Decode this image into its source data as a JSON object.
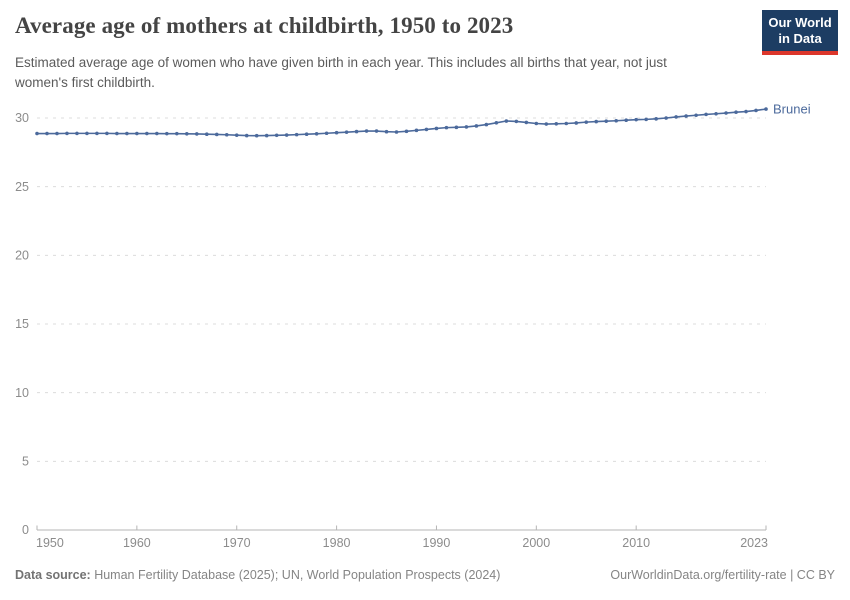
{
  "header": {
    "title": "Average age of mothers at childbirth, 1950 to 2023",
    "subtitle_line1": "Estimated average age of women who have given birth in each year. This includes all births that year, not just",
    "subtitle_line2": "women's first childbirth.",
    "logo": {
      "line1": "Our World",
      "line2": "in Data"
    }
  },
  "chart_data": {
    "type": "line",
    "title": "Average age of mothers at childbirth, 1950 to 2023",
    "xlabel": "",
    "ylabel": "",
    "xlim": [
      1950,
      2023
    ],
    "ylim": [
      0,
      30
    ],
    "x_ticks": [
      1950,
      1960,
      1970,
      1980,
      1990,
      2000,
      2010,
      2023
    ],
    "y_ticks": [
      0,
      5,
      10,
      15,
      20,
      25,
      30
    ],
    "grid": "horizontal-dashed",
    "legend_position": "end-of-line-label",
    "series": [
      {
        "name": "Brunei",
        "color": "#4c6a9c",
        "x": [
          1950,
          1951,
          1952,
          1953,
          1954,
          1955,
          1956,
          1957,
          1958,
          1959,
          1960,
          1961,
          1962,
          1963,
          1964,
          1965,
          1966,
          1967,
          1968,
          1969,
          1970,
          1971,
          1972,
          1973,
          1974,
          1975,
          1976,
          1977,
          1978,
          1979,
          1980,
          1981,
          1982,
          1983,
          1984,
          1985,
          1986,
          1987,
          1988,
          1989,
          1990,
          1991,
          1992,
          1993,
          1994,
          1995,
          1996,
          1997,
          1998,
          1999,
          2000,
          2001,
          2002,
          2003,
          2004,
          2005,
          2006,
          2007,
          2008,
          2009,
          2010,
          2011,
          2012,
          2013,
          2014,
          2015,
          2016,
          2017,
          2018,
          2019,
          2020,
          2021,
          2022,
          2023
        ],
        "values": [
          28.87,
          28.87,
          28.87,
          28.88,
          28.88,
          28.88,
          28.88,
          28.88,
          28.87,
          28.87,
          28.87,
          28.87,
          28.87,
          28.86,
          28.86,
          28.85,
          28.84,
          28.82,
          28.8,
          28.78,
          28.75,
          28.72,
          28.71,
          28.72,
          28.74,
          28.76,
          28.79,
          28.82,
          28.85,
          28.89,
          28.93,
          28.97,
          29.01,
          29.05,
          29.05,
          29.0,
          28.98,
          29.03,
          29.1,
          29.17,
          29.24,
          29.3,
          29.32,
          29.35,
          29.42,
          29.52,
          29.65,
          29.78,
          29.75,
          29.68,
          29.6,
          29.56,
          29.58,
          29.6,
          29.64,
          29.7,
          29.74,
          29.77,
          29.8,
          29.84,
          29.88,
          29.9,
          29.94,
          30.0,
          30.08,
          30.14,
          30.2,
          30.26,
          30.31,
          30.36,
          30.42,
          30.47,
          30.55,
          30.65
        ]
      }
    ]
  },
  "footer": {
    "source_label": "Data source:",
    "source_text": " Human Fertility Database (2025); UN, World Population Prospects (2024)",
    "attribution": "OurWorldinData.org/fertility-rate | CC BY"
  },
  "colors": {
    "line": "#4c6a9c",
    "grid": "#dcdcdc",
    "axis": "#b5b5b5",
    "tick_text": "#8c8c8c",
    "logo_bg": "#1d3d63",
    "logo_accent": "#dc362b"
  }
}
